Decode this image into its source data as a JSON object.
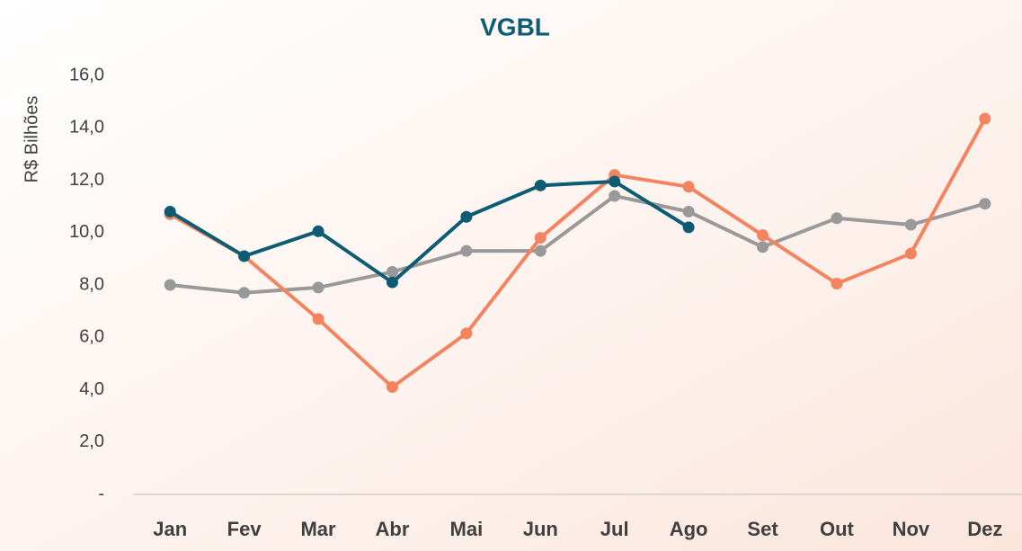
{
  "chart_data": {
    "type": "line",
    "title": "VGBL",
    "y_label": "R$ Bilhões",
    "categories": [
      "Jan",
      "Fev",
      "Mar",
      "Abr",
      "Mai",
      "Jun",
      "Jul",
      "Ago",
      "Set",
      "Out",
      "Nov",
      "Dez"
    ],
    "series": [
      {
        "color": "#999999",
        "values": [
          8.0,
          7.7,
          7.9,
          8.5,
          9.3,
          9.3,
          11.4,
          10.8,
          9.45,
          10.55,
          10.3,
          11.1
        ]
      },
      {
        "color": "#f4845f",
        "values": [
          10.7,
          9.1,
          6.7,
          4.1,
          6.15,
          9.8,
          12.2,
          11.75,
          9.9,
          8.05,
          9.2,
          14.35
        ]
      },
      {
        "color": "#0e5c73",
        "values": [
          10.8,
          9.1,
          10.05,
          8.1,
          10.6,
          11.8,
          11.95,
          10.2,
          null,
          null,
          null,
          null
        ]
      }
    ],
    "ylim": [
      0,
      16
    ],
    "yticks": [
      {
        "value": 0,
        "label": "-"
      },
      {
        "value": 2,
        "label": "2,0"
      },
      {
        "value": 4,
        "label": "4,0"
      },
      {
        "value": 6,
        "label": "6,0"
      },
      {
        "value": 8,
        "label": "8,0"
      },
      {
        "value": 10,
        "label": "10,0"
      },
      {
        "value": 12,
        "label": "12,0"
      },
      {
        "value": 14,
        "label": "14,0"
      },
      {
        "value": 16,
        "label": "16,0"
      }
    ]
  }
}
